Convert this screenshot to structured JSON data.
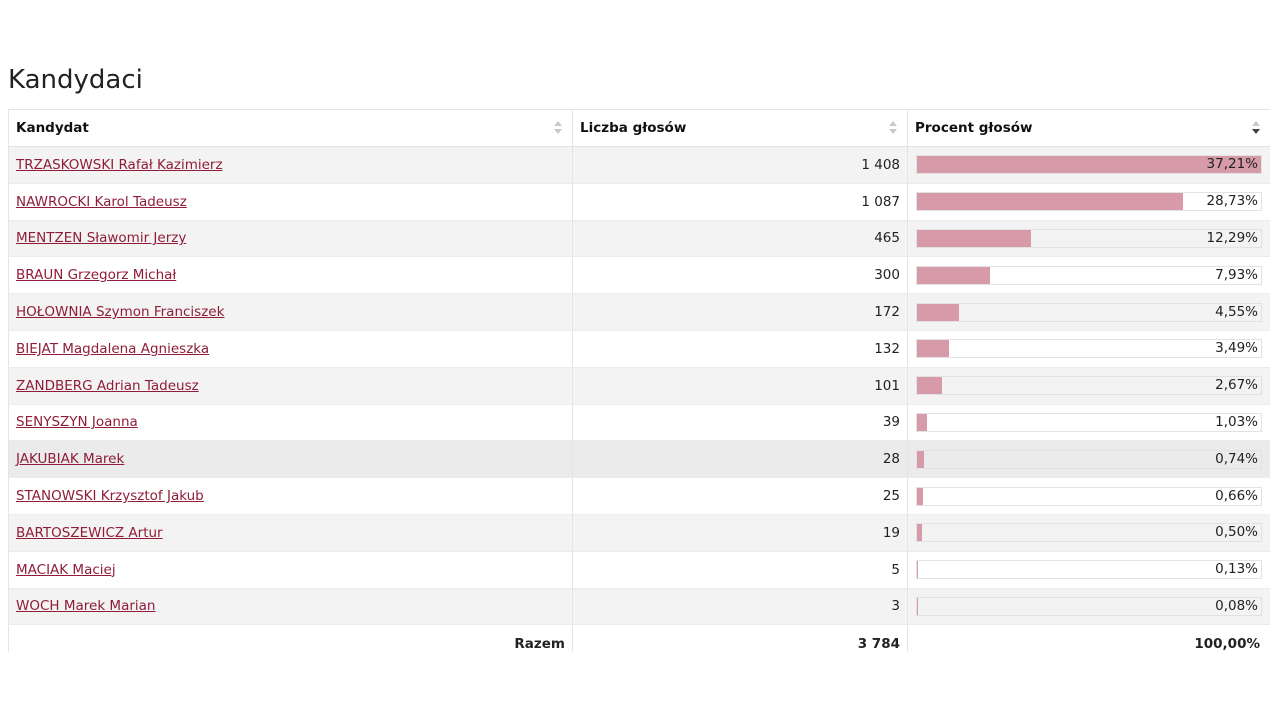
{
  "section_title": "Kandydaci",
  "table": {
    "headers": {
      "candidate": "Kandydat",
      "votes": "Liczba głosów",
      "percent": "Procent głosów"
    },
    "sort": {
      "column": "percent",
      "direction": "descending"
    },
    "rows": [
      {
        "name": "TRZASKOWSKI Rafał Kazimierz",
        "votes": "1 408",
        "percent_label": "37,21%",
        "percent": 37.21
      },
      {
        "name": "NAWROCKI Karol Tadeusz",
        "votes": "1 087",
        "percent_label": "28,73%",
        "percent": 28.73
      },
      {
        "name": "MENTZEN Sławomir Jerzy",
        "votes": "465",
        "percent_label": "12,29%",
        "percent": 12.29
      },
      {
        "name": "BRAUN Grzegorz Michał",
        "votes": "300",
        "percent_label": "7,93%",
        "percent": 7.93
      },
      {
        "name": "HOŁOWNIA Szymon Franciszek",
        "votes": "172",
        "percent_label": "4,55%",
        "percent": 4.55
      },
      {
        "name": "BIEJAT Magdalena Agnieszka",
        "votes": "132",
        "percent_label": "3,49%",
        "percent": 3.49
      },
      {
        "name": "ZANDBERG Adrian Tadeusz",
        "votes": "101",
        "percent_label": "2,67%",
        "percent": 2.67
      },
      {
        "name": "SENYSZYN Joanna",
        "votes": "39",
        "percent_label": "1,03%",
        "percent": 1.03
      },
      {
        "name": "JAKUBIAK Marek",
        "votes": "28",
        "percent_label": "0,74%",
        "percent": 0.74
      },
      {
        "name": "STANOWSKI Krzysztof Jakub",
        "votes": "25",
        "percent_label": "0,66%",
        "percent": 0.66
      },
      {
        "name": "BARTOSZEWICZ Artur",
        "votes": "19",
        "percent_label": "0,50%",
        "percent": 0.5
      },
      {
        "name": "MACIAK Maciej",
        "votes": "5",
        "percent_label": "0,13%",
        "percent": 0.13
      },
      {
        "name": "WOCH Marek Marian",
        "votes": "3",
        "percent_label": "0,08%",
        "percent": 0.08
      }
    ],
    "footer": {
      "label": "Razem",
      "votes": "3 784",
      "percent": "100,00%"
    }
  },
  "colors": {
    "link": "#8f1d3a",
    "bar_fill": "#d69aa8",
    "row_stripe": "#f3f3f3"
  },
  "icons": {
    "sort_idle": "sort-both-icon",
    "sort_active": "sort-descending-icon"
  }
}
